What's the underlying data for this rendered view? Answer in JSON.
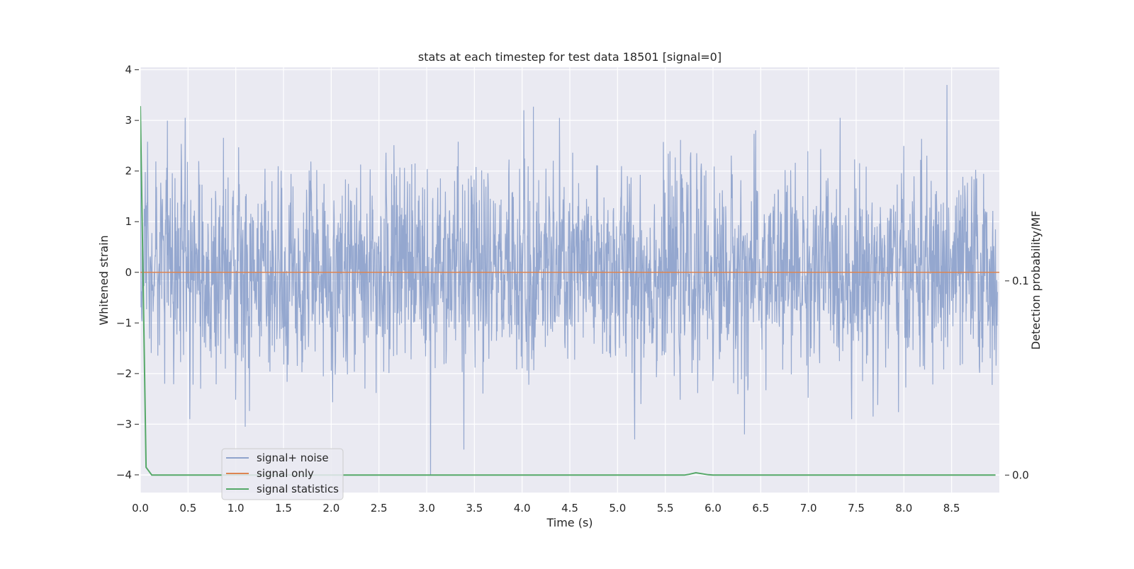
{
  "chart_data": {
    "type": "line",
    "title": "stats at each timestep for test data 18501 [signal=0]",
    "xlabel": "Time (s)",
    "ylabel": "Whitened strain",
    "y2label": "Detection probability/MF",
    "xlim": [
      0.0,
      9.0
    ],
    "ylim": [
      -4.35,
      4.05
    ],
    "y2lim": [
      -0.009,
      0.21
    ],
    "xticks": [
      0.0,
      0.5,
      1.0,
      1.5,
      2.0,
      2.5,
      3.0,
      3.5,
      4.0,
      4.5,
      5.0,
      5.5,
      6.0,
      6.5,
      7.0,
      7.5,
      8.0,
      8.5
    ],
    "xtick_labels": [
      "0.0",
      "0.5",
      "1.0",
      "1.5",
      "2.0",
      "2.5",
      "3.0",
      "3.5",
      "4.0",
      "4.5",
      "5.0",
      "5.5",
      "6.0",
      "6.5",
      "7.0",
      "7.5",
      "8.0",
      "8.5"
    ],
    "yticks": [
      -4,
      -3,
      -2,
      -1,
      0,
      1,
      2,
      3,
      4
    ],
    "ytick_labels": [
      "−4",
      "−3",
      "−2",
      "−1",
      "0",
      "1",
      "2",
      "3",
      "4"
    ],
    "y2ticks": [
      0.0,
      0.1
    ],
    "y2tick_labels": [
      "0.0",
      "0.1"
    ],
    "grid": true,
    "legend_position": "lower-left",
    "series": [
      {
        "name": "signal+ noise",
        "axis": "left",
        "color": "#8fa3cc",
        "description_kind": "noise",
        "sample_count": 2600,
        "amplitude_std": 0.95,
        "peaks": [
          {
            "x": 4.02,
            "y": 3.2
          },
          {
            "x": 4.12,
            "y": 3.27
          },
          {
            "x": 8.45,
            "y": 3.7
          },
          {
            "x": 3.04,
            "y": -4.0
          },
          {
            "x": 3.39,
            "y": -3.5
          },
          {
            "x": 1.1,
            "y": -3.05
          },
          {
            "x": 6.33,
            "y": -3.2
          },
          {
            "x": 5.18,
            "y": -3.3
          }
        ]
      },
      {
        "name": "signal only",
        "axis": "left",
        "color": "#dd8452",
        "x": [
          0.0,
          9.0
        ],
        "y": [
          0.0,
          0.0
        ]
      },
      {
        "name": "signal statistics",
        "axis": "right",
        "color": "#55a868",
        "x": [
          0.0,
          0.06,
          0.12,
          0.5,
          1.0,
          2.0,
          3.0,
          4.0,
          5.0,
          5.7,
          5.75,
          5.82,
          5.95,
          6.0,
          7.0,
          8.0,
          8.96
        ],
        "y": [
          0.19,
          0.004,
          0.0,
          0.0,
          0.0,
          0.0,
          0.0,
          0.0,
          0.0,
          0.0,
          0.0004,
          0.0012,
          0.0002,
          0.0,
          0.0,
          0.0,
          0.0
        ]
      }
    ]
  }
}
